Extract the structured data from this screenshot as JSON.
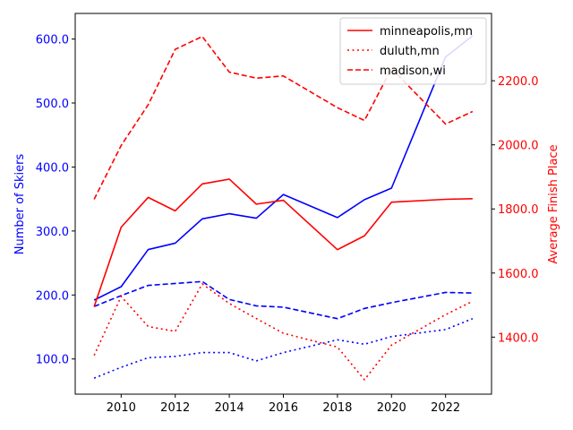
{
  "chart_data": {
    "type": "line",
    "title": "",
    "xlabel": "",
    "ylabel_left": "Number of Skiers",
    "ylabel_right": "Average Finish Place",
    "left_axis_color": "#0000ff",
    "right_axis_color": "#ff0000",
    "x": [
      2009,
      2010,
      2011,
      2012,
      2013,
      2014,
      2015,
      2016,
      2018,
      2019,
      2020,
      2022,
      2023
    ],
    "xticks": [
      2010,
      2012,
      2014,
      2016,
      2018,
      2020,
      2022
    ],
    "xlim": [
      2008.3,
      2023.7
    ],
    "ylim_left": [
      45,
      640
    ],
    "ylim_right": [
      1222,
      2410
    ],
    "yticks_left": [
      "100.0",
      "200.0",
      "300.0",
      "400.0",
      "500.0",
      "600.0"
    ],
    "yticks_right": [
      "1400.0",
      "1600.0",
      "1800.0",
      "2000.0",
      "2200.0"
    ],
    "legend": {
      "placement": "top-right",
      "entries": [
        {
          "label": "minneapolis,mn",
          "dash": "solid"
        },
        {
          "label": "duluth,mn",
          "dash": "dotted"
        },
        {
          "label": "madison,wi",
          "dash": "dashed"
        }
      ]
    },
    "series": [
      {
        "name": "minneapolis,mn",
        "axis": "left",
        "color": "#0000ff",
        "dash": "solid",
        "values": [
          192,
          213,
          271,
          281,
          319,
          327,
          320,
          357,
          321,
          349,
          367,
          572,
          605
        ]
      },
      {
        "name": "duluth,mn",
        "axis": "left",
        "color": "#0000ff",
        "dash": "dotted",
        "values": [
          70,
          87,
          102,
          104,
          110,
          110,
          97,
          110,
          130,
          123,
          135,
          146,
          163
        ]
      },
      {
        "name": "madison,wi",
        "axis": "left",
        "color": "#0000ff",
        "dash": "dashed",
        "values": [
          182,
          199,
          215,
          218,
          221,
          193,
          183,
          181,
          163,
          179,
          188,
          204,
          203
        ]
      },
      {
        "name": "minneapolis,mn",
        "axis": "right",
        "color": "#ff0000",
        "dash": "solid",
        "values": [
          1495,
          1743,
          1836,
          1794,
          1878,
          1893,
          1815,
          1827,
          1673,
          1716,
          1821,
          1830,
          1832
        ]
      },
      {
        "name": "duluth,mn",
        "axis": "right",
        "color": "#ff0000",
        "dash": "dotted",
        "values": [
          1343,
          1527,
          1433,
          1418,
          1566,
          1505,
          1458,
          1412,
          1369,
          1267,
          1375,
          1470,
          1512
        ]
      },
      {
        "name": "madison,wi",
        "axis": "right",
        "color": "#ff0000",
        "dash": "dashed",
        "values": [
          1830,
          1998,
          2125,
          2298,
          2338,
          2227,
          2208,
          2215,
          2116,
          2076,
          2238,
          2065,
          2104
        ]
      }
    ]
  }
}
